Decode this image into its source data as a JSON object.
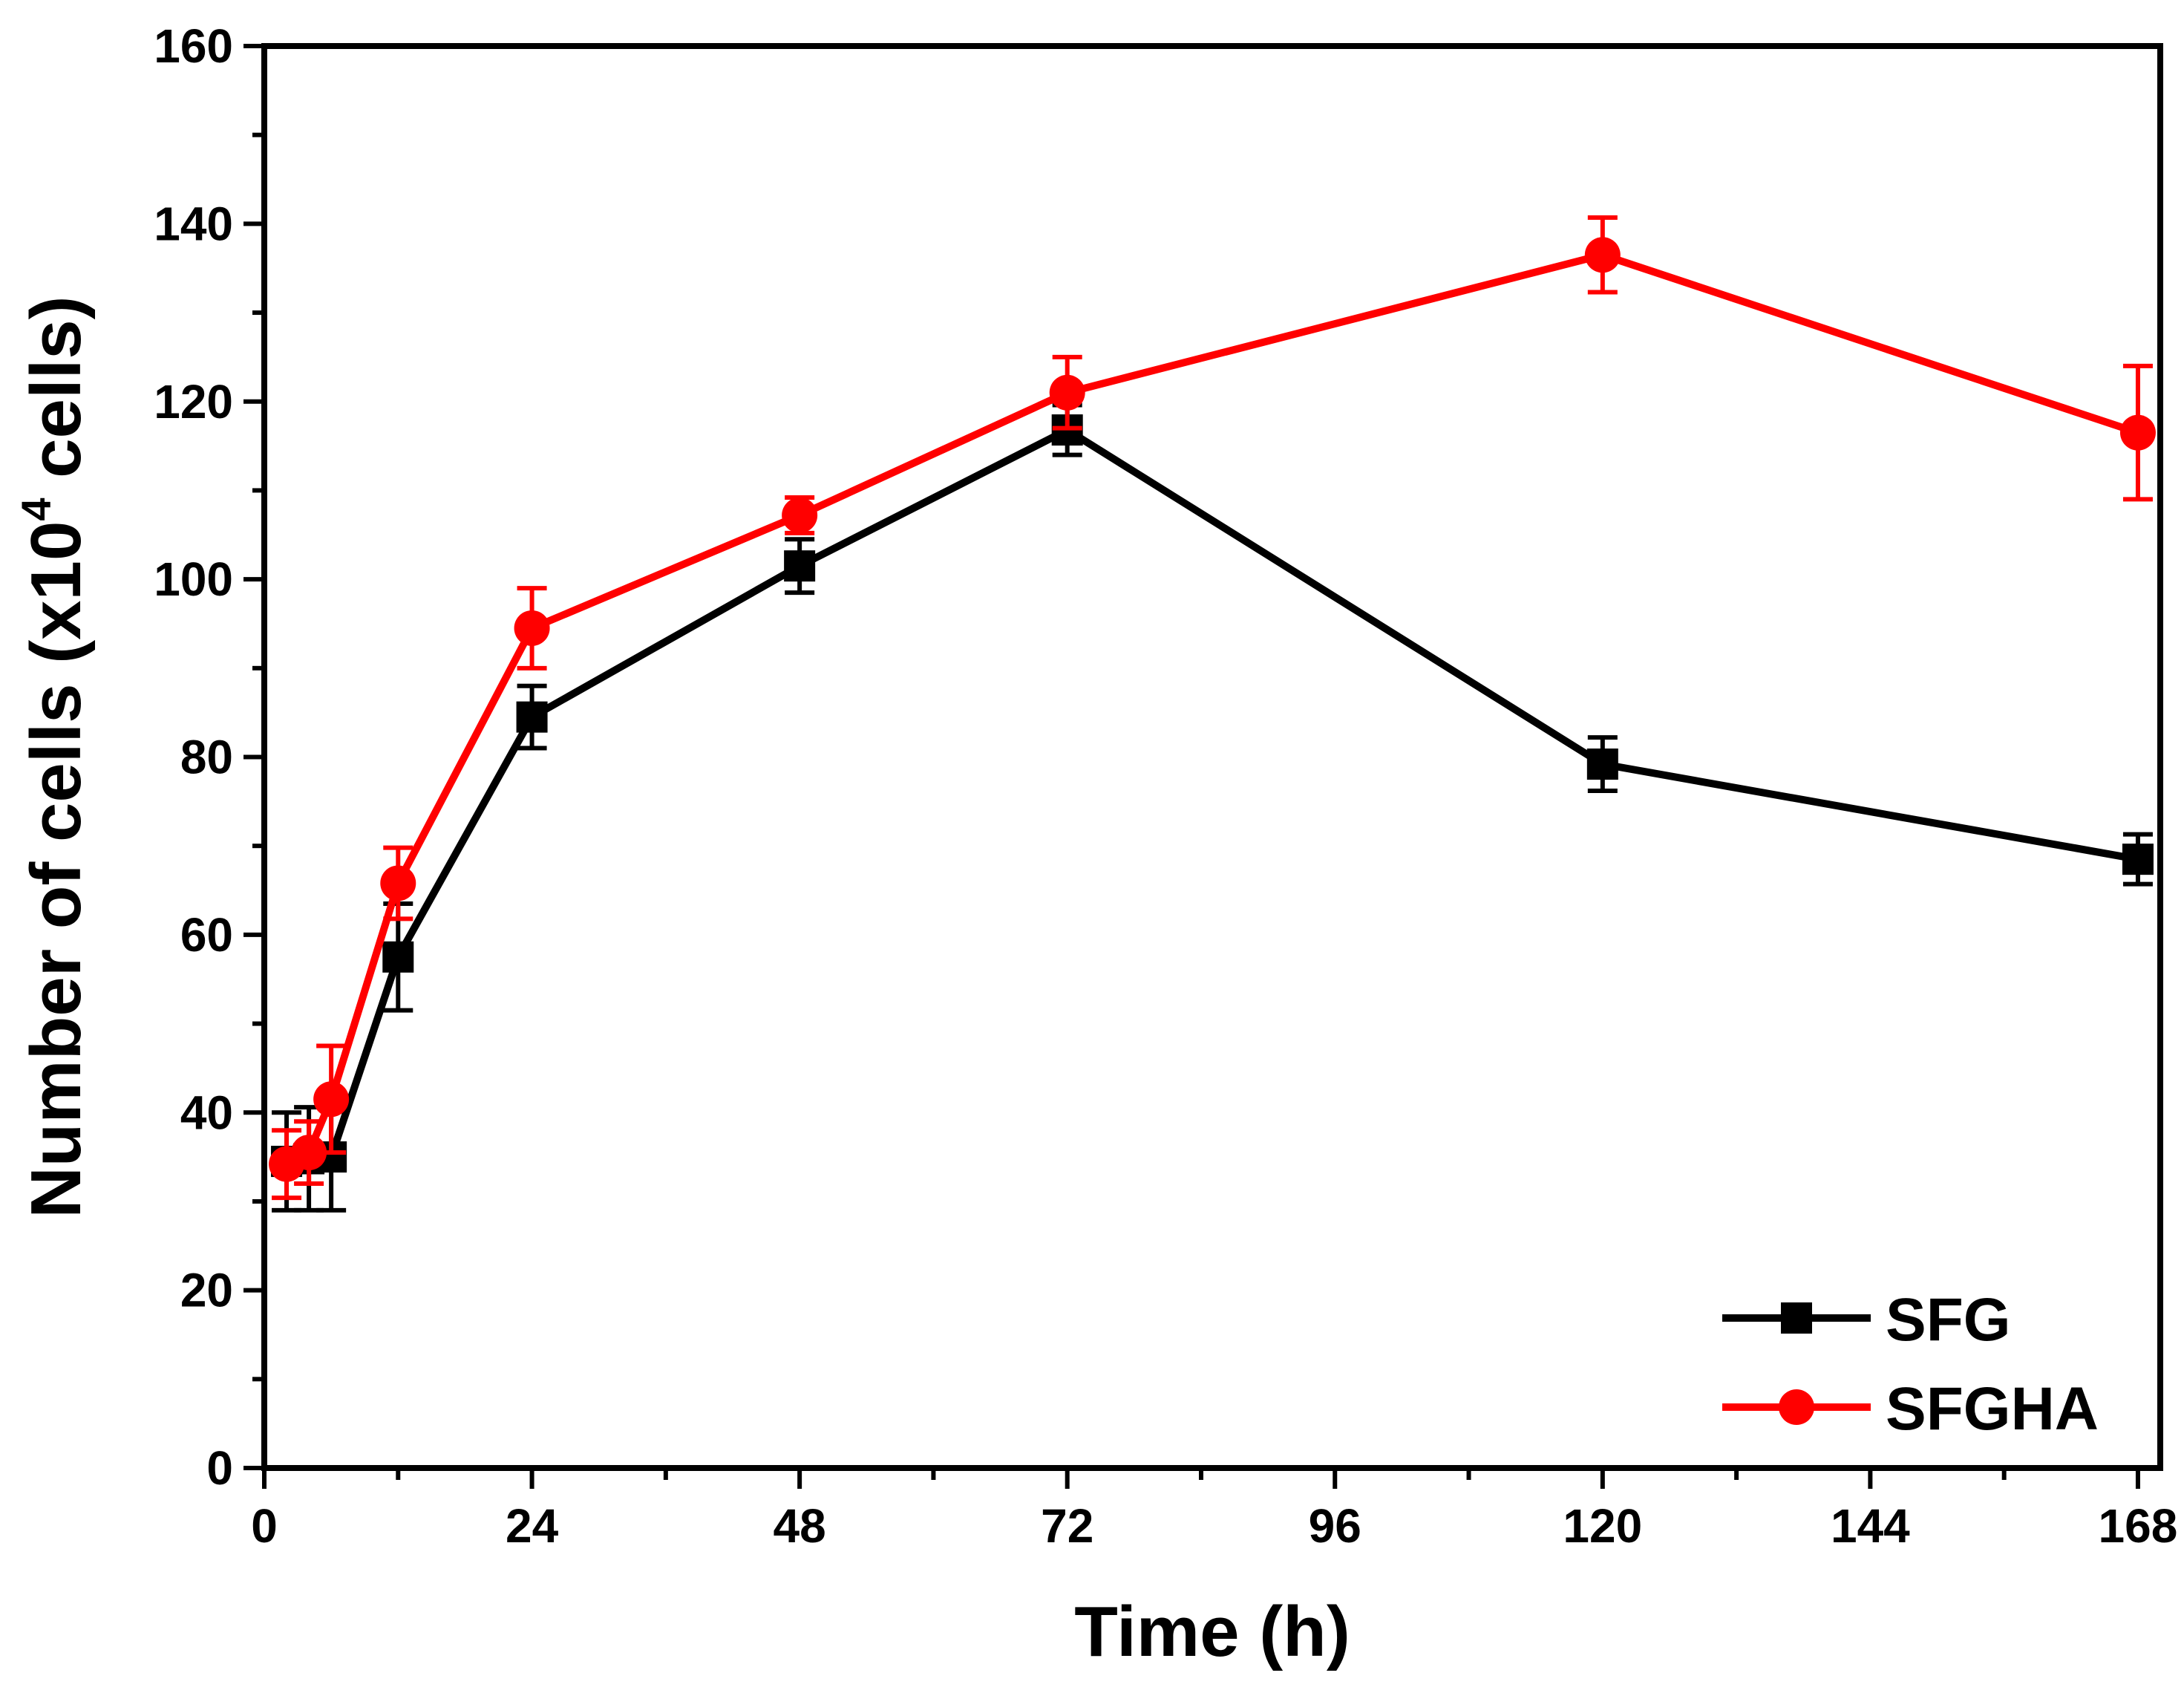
{
  "chart_data": {
    "type": "line",
    "title": "",
    "xlabel": "Time (h)",
    "ylabel_main": "Number of cells (x10",
    "ylabel_sup": "4",
    "ylabel_end": " cells)",
    "xlim": [
      0,
      170
    ],
    "ylim": [
      0,
      160
    ],
    "x_major_ticks": [
      0,
      24,
      48,
      72,
      96,
      120,
      144,
      168
    ],
    "x_tick_labels": [
      "0",
      "24",
      "48",
      "72",
      "96",
      "120",
      "144",
      "168"
    ],
    "y_major_ticks": [
      0,
      20,
      40,
      60,
      80,
      100,
      120,
      140,
      160
    ],
    "y_tick_labels": [
      "0",
      "20",
      "40",
      "60",
      "80",
      "100",
      "120",
      "140",
      "160"
    ],
    "legend_position": "bottom-right",
    "grid": false,
    "series": [
      {
        "name": "SFG",
        "color": "#000000",
        "marker": "square",
        "x": [
          2,
          4,
          6,
          12,
          24,
          48,
          72,
          120,
          168
        ],
        "y": [
          34.5,
          34.8,
          35.0,
          57.5,
          84.5,
          101.5,
          116.8,
          79.2,
          68.5
        ],
        "err": [
          5.5,
          5.8,
          6.0,
          6.0,
          3.5,
          3.0,
          2.8,
          3.0,
          2.8
        ]
      },
      {
        "name": "SFGHA",
        "color": "#ff0000",
        "marker": "circle",
        "x": [
          2,
          4,
          6,
          12,
          24,
          48,
          72,
          120,
          168
        ],
        "y": [
          34.2,
          35.5,
          41.5,
          65.8,
          94.5,
          107.2,
          121.0,
          136.5,
          116.5
        ],
        "err": [
          3.8,
          3.5,
          6.0,
          4.0,
          4.5,
          2.0,
          4.0,
          4.2,
          7.5
        ]
      }
    ]
  }
}
